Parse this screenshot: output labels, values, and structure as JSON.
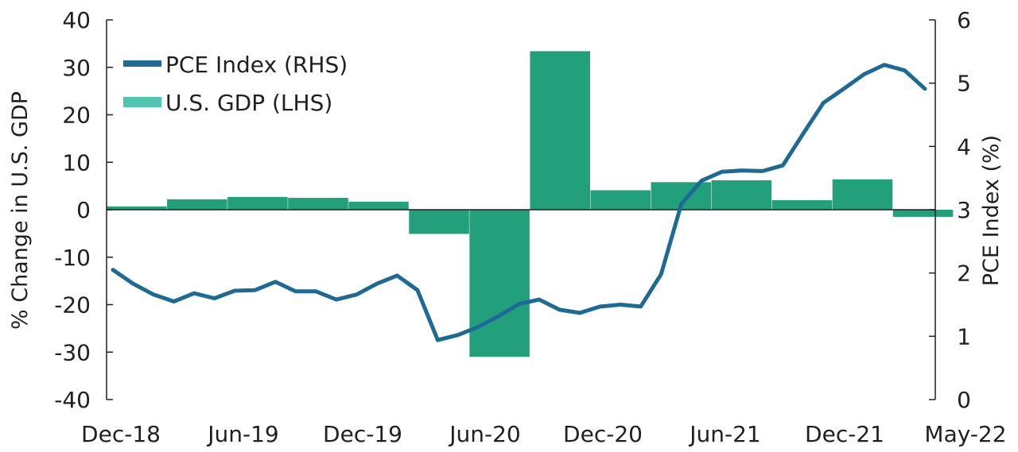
{
  "chart_data": {
    "type": "bar+line",
    "title": "",
    "x_tick_labels": [
      "Dec-18",
      "Jun-19",
      "Dec-19",
      "Jun-20",
      "Dec-20",
      "Jun-21",
      "Dec-21",
      "May-22"
    ],
    "left_axis": {
      "label": "% Change in U.S. GDP",
      "range": [
        -40,
        40
      ],
      "ticks": [
        40,
        30,
        20,
        10,
        0,
        -10,
        -20,
        -30,
        -40
      ],
      "tick_labels": [
        "40",
        "30",
        "20",
        "10",
        "0",
        "-10",
        "-20",
        "-30",
        "-40"
      ]
    },
    "right_axis": {
      "label": "PCE Index (%)",
      "range": [
        0,
        6
      ],
      "ticks": [
        6,
        5,
        4,
        3,
        2,
        1,
        0
      ],
      "tick_labels": [
        "6",
        "5",
        "4",
        "3",
        "2",
        "1",
        "0"
      ]
    },
    "legend": {
      "placement": "top-left",
      "items": [
        {
          "label": "PCE Index (RHS)",
          "color": "#1d6a96",
          "kind": "line"
        },
        {
          "label": "U.S. GDP (LHS)",
          "color": "#4fc4b0",
          "kind": "bar"
        }
      ]
    },
    "gdp_series": {
      "name": "U.S. GDP (LHS)",
      "axis": "left",
      "color": "#22a07c",
      "categories": [
        "Q4-18",
        "Q1-19",
        "Q2-19",
        "Q3-19",
        "Q4-19",
        "Q1-20",
        "Q2-20",
        "Q3-20",
        "Q4-20",
        "Q1-21",
        "Q2-21",
        "Q3-21",
        "Q4-21",
        "Q1-22"
      ],
      "values": [
        0.7,
        2.2,
        2.7,
        2.5,
        1.7,
        -5.1,
        -31.0,
        33.4,
        4.1,
        5.8,
        6.2,
        2.0,
        6.4,
        -1.5
      ]
    },
    "pce_series": {
      "name": "PCE Index (RHS)",
      "axis": "right",
      "color": "#1d6a96",
      "values": [
        2.05,
        1.83,
        1.66,
        1.55,
        1.68,
        1.6,
        1.72,
        1.73,
        1.86,
        1.71,
        1.71,
        1.58,
        1.66,
        1.83,
        1.96,
        1.73,
        0.94,
        1.02,
        1.15,
        1.32,
        1.51,
        1.58,
        1.42,
        1.37,
        1.47,
        1.5,
        1.47,
        1.98,
        3.09,
        3.46,
        3.6,
        3.62,
        3.61,
        3.7,
        4.2,
        4.69,
        4.91,
        5.14,
        5.29,
        5.2,
        4.91
      ]
    }
  }
}
